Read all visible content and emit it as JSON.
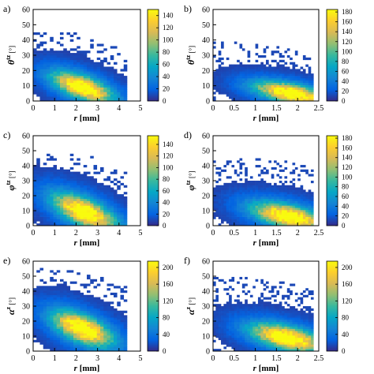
{
  "chart_data": [
    {
      "panel": "a)",
      "type": "heatmap",
      "xlabel": "r [mm]",
      "ylabel": "θ^tz [°]",
      "xlim": [
        0,
        5
      ],
      "ylim": [
        0,
        60
      ],
      "xticks": [
        "0",
        "1",
        "2",
        "3",
        "4",
        "5"
      ],
      "yticks": [
        "0",
        "10",
        "20",
        "30",
        "40",
        "50",
        "60"
      ],
      "colorbar": {
        "min": 0,
        "max": 150,
        "ticks": [
          "0",
          "20",
          "40",
          "60",
          "80",
          "100",
          "120",
          "140"
        ]
      },
      "peak": {
        "x": 2.3,
        "y": 9,
        "value": 150
      },
      "spread": {
        "sx": 0.9,
        "sy": 5
      },
      "tilt": -4.5,
      "bins": {
        "x": 32,
        "y": 40
      },
      "density_edge": {
        "x_max": 4.4,
        "y_max": 45
      }
    },
    {
      "panel": "b)",
      "type": "heatmap",
      "xlabel": "r [mm]",
      "ylabel": "θ^tz [°]",
      "xlim": [
        0,
        2.5
      ],
      "ylim": [
        0,
        60
      ],
      "xticks": [
        "0",
        "0.5",
        "1",
        "1.5",
        "2",
        "2.5"
      ],
      "yticks": [
        "0",
        "10",
        "20",
        "30",
        "40",
        "50",
        "60"
      ],
      "colorbar": {
        "min": 0,
        "max": 185,
        "ticks": [
          "0",
          "20",
          "40",
          "60",
          "80",
          "100",
          "120",
          "140",
          "160",
          "180"
        ]
      },
      "peak": {
        "x": 1.85,
        "y": 5,
        "value": 185
      },
      "spread": {
        "sx": 0.55,
        "sy": 4
      },
      "tilt": -5,
      "bins": {
        "x": 40,
        "y": 40
      },
      "density_edge": {
        "x_max": 2.35,
        "y_max": 40
      }
    },
    {
      "panel": "c)",
      "type": "heatmap",
      "xlabel": "r [mm]",
      "ylabel": "φ^tz [°]",
      "xlim": [
        0,
        5
      ],
      "ylim": [
        0,
        60
      ],
      "xticks": [
        "0",
        "1",
        "2",
        "3",
        "4",
        "5"
      ],
      "yticks": [
        "0",
        "10",
        "20",
        "30",
        "40",
        "50",
        "60"
      ],
      "colorbar": {
        "min": 0,
        "max": 155,
        "ticks": [
          "0",
          "20",
          "40",
          "60",
          "80",
          "100",
          "120",
          "140"
        ]
      },
      "peak": {
        "x": 2.4,
        "y": 9,
        "value": 155
      },
      "spread": {
        "sx": 0.95,
        "sy": 6
      },
      "tilt": -5.5,
      "bins": {
        "x": 32,
        "y": 40
      },
      "density_edge": {
        "x_max": 4.3,
        "y_max": 48
      }
    },
    {
      "panel": "d)",
      "type": "heatmap",
      "xlabel": "r [mm]",
      "ylabel": "φ^tz [°]",
      "xlim": [
        0,
        2.5
      ],
      "ylim": [
        0,
        60
      ],
      "xticks": [
        "0",
        "0.5",
        "1",
        "1.5",
        "2",
        "2.5"
      ],
      "yticks": [
        "0",
        "10",
        "20",
        "30",
        "40",
        "50",
        "60"
      ],
      "colorbar": {
        "min": 0,
        "max": 185,
        "ticks": [
          "0",
          "20",
          "40",
          "60",
          "80",
          "100",
          "120",
          "140",
          "160",
          "180"
        ]
      },
      "peak": {
        "x": 1.8,
        "y": 6,
        "value": 185
      },
      "spread": {
        "sx": 0.55,
        "sy": 5
      },
      "tilt": -6,
      "bins": {
        "x": 40,
        "y": 40
      },
      "density_edge": {
        "x_max": 2.35,
        "y_max": 45
      }
    },
    {
      "panel": "e)",
      "type": "heatmap",
      "xlabel": "r [mm]",
      "ylabel": "α^z [°]",
      "xlim": [
        0,
        5
      ],
      "ylim": [
        0,
        60
      ],
      "xticks": [
        "0",
        "1",
        "2",
        "3",
        "4",
        "5"
      ],
      "yticks": [
        "0",
        "10",
        "20",
        "30",
        "40",
        "50",
        "60"
      ],
      "colorbar": {
        "min": 0,
        "max": 215,
        "ticks": [
          "0",
          "40",
          "80",
          "120",
          "160",
          "200"
        ]
      },
      "peak": {
        "x": 2.3,
        "y": 15,
        "value": 215
      },
      "spread": {
        "sx": 0.9,
        "sy": 6
      },
      "tilt": -5,
      "bins": {
        "x": 32,
        "y": 40
      },
      "density_edge": {
        "x_max": 4.3,
        "y_max": 55
      }
    },
    {
      "panel": "f)",
      "type": "heatmap",
      "xlabel": "r [mm]",
      "ylabel": "α^z [°]",
      "xlim": [
        0,
        2.5
      ],
      "ylim": [
        0,
        60
      ],
      "xticks": [
        "0",
        "0.5",
        "1",
        "1.5",
        "2",
        "2.5"
      ],
      "yticks": [
        "0",
        "10",
        "20",
        "30",
        "40",
        "50",
        "60"
      ],
      "colorbar": {
        "min": 0,
        "max": 215,
        "ticks": [
          "0",
          "40",
          "80",
          "120",
          "160",
          "200"
        ]
      },
      "peak": {
        "x": 1.75,
        "y": 9,
        "value": 215
      },
      "spread": {
        "sx": 0.55,
        "sy": 5
      },
      "tilt": -6,
      "bins": {
        "x": 40,
        "y": 40
      },
      "density_edge": {
        "x_max": 2.35,
        "y_max": 50
      }
    }
  ],
  "colors": {
    "colormap": "parula",
    "colormap_stops": [
      "#352a87",
      "#0363e1",
      "#1485d4",
      "#06a7c6",
      "#38b99e",
      "#92bf73",
      "#d9ba56",
      "#fcce2e",
      "#f9fb0e"
    ],
    "axis": "#000000"
  }
}
